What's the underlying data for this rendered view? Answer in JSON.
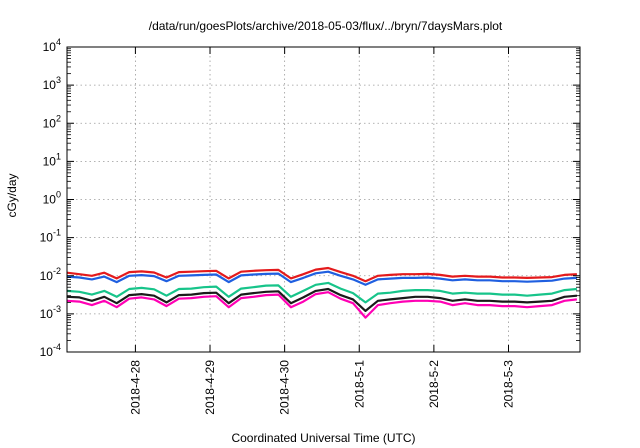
{
  "chart_data": {
    "type": "line",
    "title": "/data/run/goesPlots/archive/2018-05-03/flux/../bryn/7daysMars.plot",
    "xlabel": "Coordinated Universal Time (UTC)",
    "ylabel": "cGy/day",
    "yscale": "log",
    "ylim": [
      0.0001,
      10000
    ],
    "y_ticks": [
      {
        "base": "10",
        "exp": "-4",
        "value": 0.0001
      },
      {
        "base": "10",
        "exp": "-3",
        "value": 0.001
      },
      {
        "base": "10",
        "exp": "-2",
        "value": 0.01
      },
      {
        "base": "10",
        "exp": "-1",
        "value": 0.1
      },
      {
        "base": "10",
        "exp": "0",
        "value": 1
      },
      {
        "base": "10",
        "exp": "1",
        "value": 10
      },
      {
        "base": "10",
        "exp": "2",
        "value": 100
      },
      {
        "base": "10",
        "exp": "3",
        "value": 1000
      },
      {
        "base": "10",
        "exp": "4",
        "value": 10000
      }
    ],
    "xlim": [
      "2018-04-27T02:00",
      "2018-05-03T23:00"
    ],
    "x_ticks": [
      {
        "label": "2018-4-28",
        "x": "2018-04-28"
      },
      {
        "label": "2018-4-29",
        "x": "2018-04-29"
      },
      {
        "label": "2018-4-30",
        "x": "2018-04-30"
      },
      {
        "label": "2018-5-1",
        "x": "2018-05-01"
      },
      {
        "label": "2018-5-2",
        "x": "2018-05-02"
      },
      {
        "label": "2018-5-3",
        "x": "2018-05-03"
      }
    ],
    "grid": true,
    "x": [
      "2018-04-27T02:00",
      "2018-04-27T06:00",
      "2018-04-27T10:00",
      "2018-04-27T14:00",
      "2018-04-27T18:00",
      "2018-04-27T22:00",
      "2018-04-28T02:00",
      "2018-04-28T06:00",
      "2018-04-28T10:00",
      "2018-04-28T14:00",
      "2018-04-28T18:00",
      "2018-04-28T22:00",
      "2018-04-29T02:00",
      "2018-04-29T06:00",
      "2018-04-29T10:00",
      "2018-04-29T14:00",
      "2018-04-29T18:00",
      "2018-04-29T22:00",
      "2018-04-30T02:00",
      "2018-04-30T06:00",
      "2018-04-30T10:00",
      "2018-04-30T14:00",
      "2018-04-30T18:00",
      "2018-04-30T22:00",
      "2018-05-01T02:00",
      "2018-05-01T06:00",
      "2018-05-01T10:00",
      "2018-05-01T14:00",
      "2018-05-01T18:00",
      "2018-05-01T22:00",
      "2018-05-02T02:00",
      "2018-05-02T06:00",
      "2018-05-02T10:00",
      "2018-05-02T14:00",
      "2018-05-02T18:00",
      "2018-05-02T22:00",
      "2018-05-03T02:00",
      "2018-05-03T06:00",
      "2018-05-03T10:00",
      "2018-05-03T14:00",
      "2018-05-03T18:00",
      "2018-05-03T22:00"
    ],
    "series": [
      {
        "color": "#e41a1c",
        "values": [
          0.012,
          0.011,
          0.01,
          0.012,
          0.0085,
          0.0125,
          0.013,
          0.0122,
          0.009,
          0.0125,
          0.0128,
          0.0132,
          0.0135,
          0.0085,
          0.0128,
          0.0135,
          0.014,
          0.0142,
          0.0085,
          0.011,
          0.0145,
          0.016,
          0.0125,
          0.01,
          0.0072,
          0.01,
          0.0105,
          0.011,
          0.011,
          0.0112,
          0.0105,
          0.0095,
          0.01,
          0.0095,
          0.0095,
          0.009,
          0.009,
          0.0088,
          0.009,
          0.0092,
          0.0105,
          0.011
        ]
      },
      {
        "color": "#1f5fe0",
        "values": [
          0.0095,
          0.009,
          0.008,
          0.0095,
          0.0068,
          0.01,
          0.0104,
          0.0098,
          0.0072,
          0.01,
          0.0102,
          0.0105,
          0.0108,
          0.0068,
          0.0102,
          0.0108,
          0.0112,
          0.0114,
          0.0068,
          0.0088,
          0.0116,
          0.0128,
          0.01,
          0.008,
          0.0058,
          0.008,
          0.0084,
          0.0088,
          0.0088,
          0.009,
          0.0084,
          0.0076,
          0.008,
          0.0076,
          0.0076,
          0.0072,
          0.0072,
          0.007,
          0.0072,
          0.0074,
          0.0084,
          0.0088
        ]
      },
      {
        "color": "#17c48a",
        "values": [
          0.004,
          0.0038,
          0.0032,
          0.004,
          0.0028,
          0.0045,
          0.0048,
          0.0044,
          0.003,
          0.0045,
          0.0046,
          0.005,
          0.0052,
          0.0028,
          0.0046,
          0.005,
          0.0055,
          0.0056,
          0.0028,
          0.004,
          0.0058,
          0.0065,
          0.0046,
          0.0035,
          0.002,
          0.0034,
          0.0036,
          0.004,
          0.0042,
          0.0042,
          0.004,
          0.0034,
          0.0036,
          0.0034,
          0.0034,
          0.0032,
          0.0032,
          0.003,
          0.0032,
          0.0034,
          0.0042,
          0.0045
        ]
      },
      {
        "color": "#1a1a1a",
        "values": [
          0.0028,
          0.0027,
          0.0022,
          0.0028,
          0.0019,
          0.0031,
          0.0033,
          0.003,
          0.002,
          0.0031,
          0.0032,
          0.0035,
          0.0036,
          0.0019,
          0.0032,
          0.0035,
          0.0038,
          0.0039,
          0.0019,
          0.0027,
          0.004,
          0.0045,
          0.0031,
          0.0024,
          0.0012,
          0.0022,
          0.0024,
          0.0026,
          0.0028,
          0.0028,
          0.0026,
          0.0022,
          0.0024,
          0.0022,
          0.0022,
          0.0021,
          0.0021,
          0.002,
          0.0021,
          0.0022,
          0.0028,
          0.003
        ]
      },
      {
        "color": "#ff00b4",
        "values": [
          0.0022,
          0.0021,
          0.0017,
          0.0022,
          0.0015,
          0.0025,
          0.0027,
          0.0024,
          0.0016,
          0.0025,
          0.0026,
          0.0028,
          0.0029,
          0.0015,
          0.0026,
          0.0028,
          0.0031,
          0.0032,
          0.0015,
          0.0021,
          0.0033,
          0.0037,
          0.0025,
          0.0019,
          0.0008,
          0.0017,
          0.0019,
          0.0021,
          0.0022,
          0.0022,
          0.0021,
          0.0017,
          0.0019,
          0.0017,
          0.0017,
          0.0016,
          0.0016,
          0.0015,
          0.0016,
          0.0017,
          0.0022,
          0.0024
        ]
      }
    ]
  }
}
